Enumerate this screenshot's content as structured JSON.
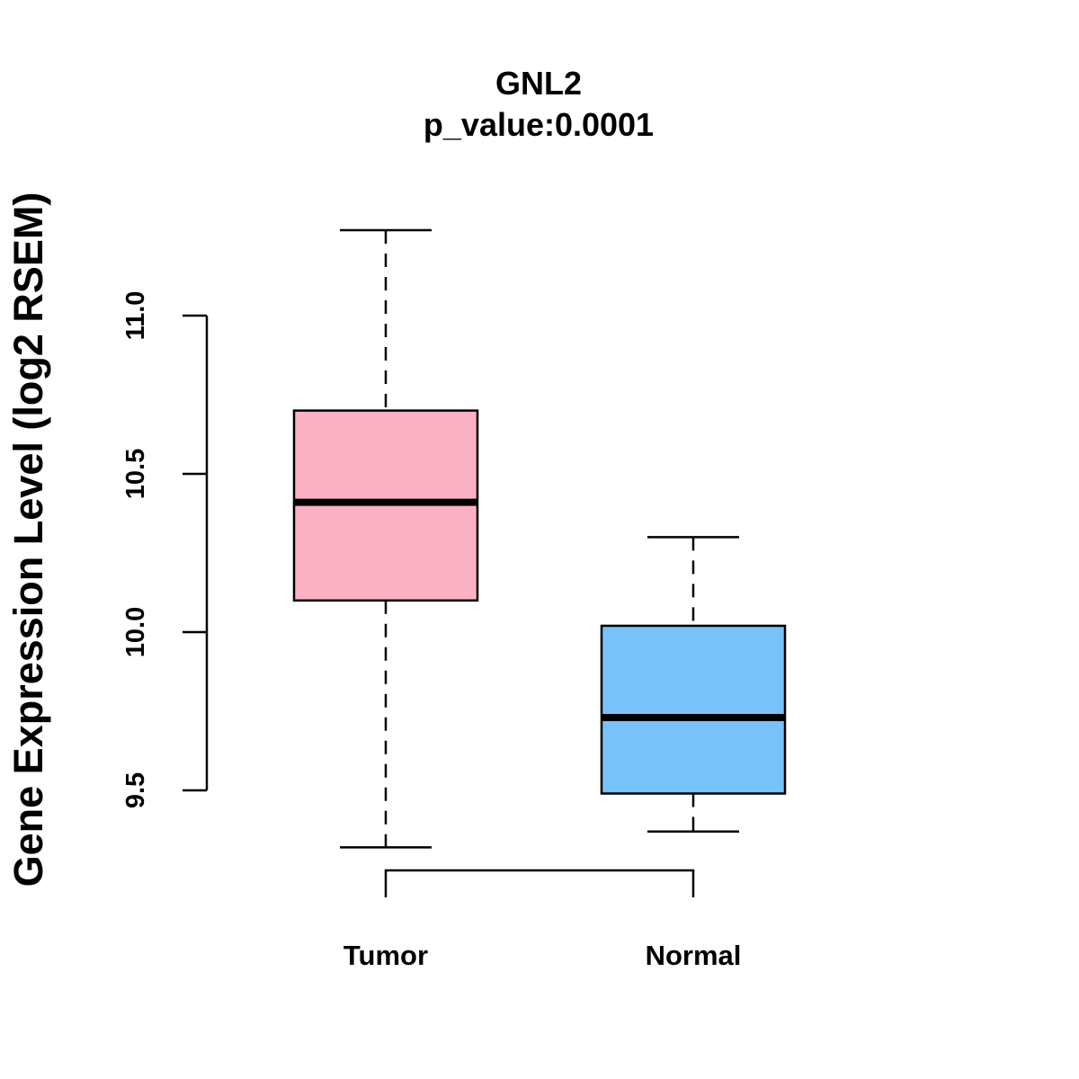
{
  "chart_data": {
    "type": "box",
    "title": "GNL2",
    "subtitle": "p_value:0.0001",
    "xlabel": "",
    "ylabel": "Gene Expression Level (log2 RSEM)",
    "ylim": [
      9.5,
      11.0
    ],
    "yticks": [
      {
        "value": 9.5,
        "label": "9.5"
      },
      {
        "value": 10.0,
        "label": "10.0"
      },
      {
        "value": 10.5,
        "label": "10.5"
      },
      {
        "value": 11.0,
        "label": "11.0"
      }
    ],
    "grid": false,
    "series": [
      {
        "name": "Tumor",
        "color": "#FBB1C3",
        "whisker_low": 9.32,
        "q1": 10.1,
        "median": 10.41,
        "q3": 10.7,
        "whisker_high": 11.27
      },
      {
        "name": "Normal",
        "color": "#77C2F8",
        "whisker_low": 9.37,
        "q1": 9.49,
        "median": 9.73,
        "q3": 10.02,
        "whisker_high": 10.3
      }
    ],
    "comparison_bracket": {
      "from": "Tumor",
      "to": "Normal"
    }
  }
}
